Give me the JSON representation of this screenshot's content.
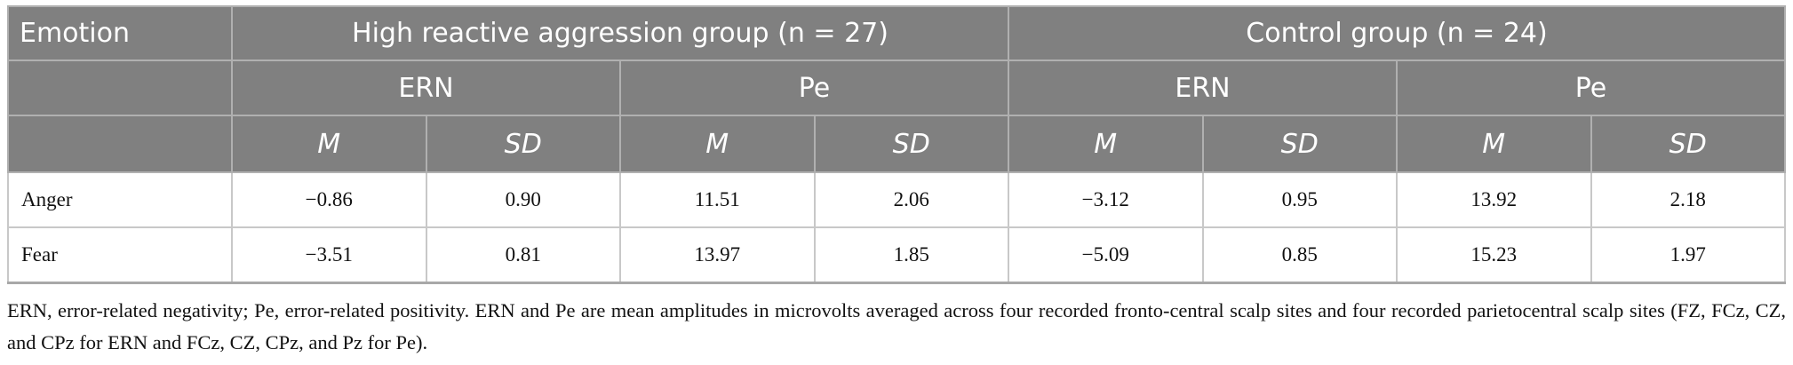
{
  "table": {
    "header": {
      "row1": [
        "Emotion",
        "High reactive aggression group (n = 27)",
        "Control group (n = 24)"
      ],
      "row2": [
        "ERN",
        "Pe",
        "ERN",
        "Pe"
      ],
      "row3": [
        "M",
        "SD",
        "M",
        "SD",
        "M",
        "SD",
        "M",
        "SD"
      ]
    },
    "rows": [
      [
        "Anger",
        "−0.86",
        "0.90",
        "11.51",
        "2.06",
        "−3.12",
        "0.95",
        "13.92",
        "2.18"
      ],
      [
        "Fear",
        "−3.51",
        "0.81",
        "13.97",
        "1.85",
        "−5.09",
        "0.85",
        "15.23",
        "1.97"
      ]
    ]
  },
  "footnote": "ERN, error-related negativity; Pe, error-related positivity. ERN and Pe are mean amplitudes in microvolts averaged across four recorded fronto-central scalp sites and four recorded parietocentral scalp sites (FZ, FCz, CZ, and CPz for ERN and FCz, CZ, CPz, and Pz for Pe)."
}
